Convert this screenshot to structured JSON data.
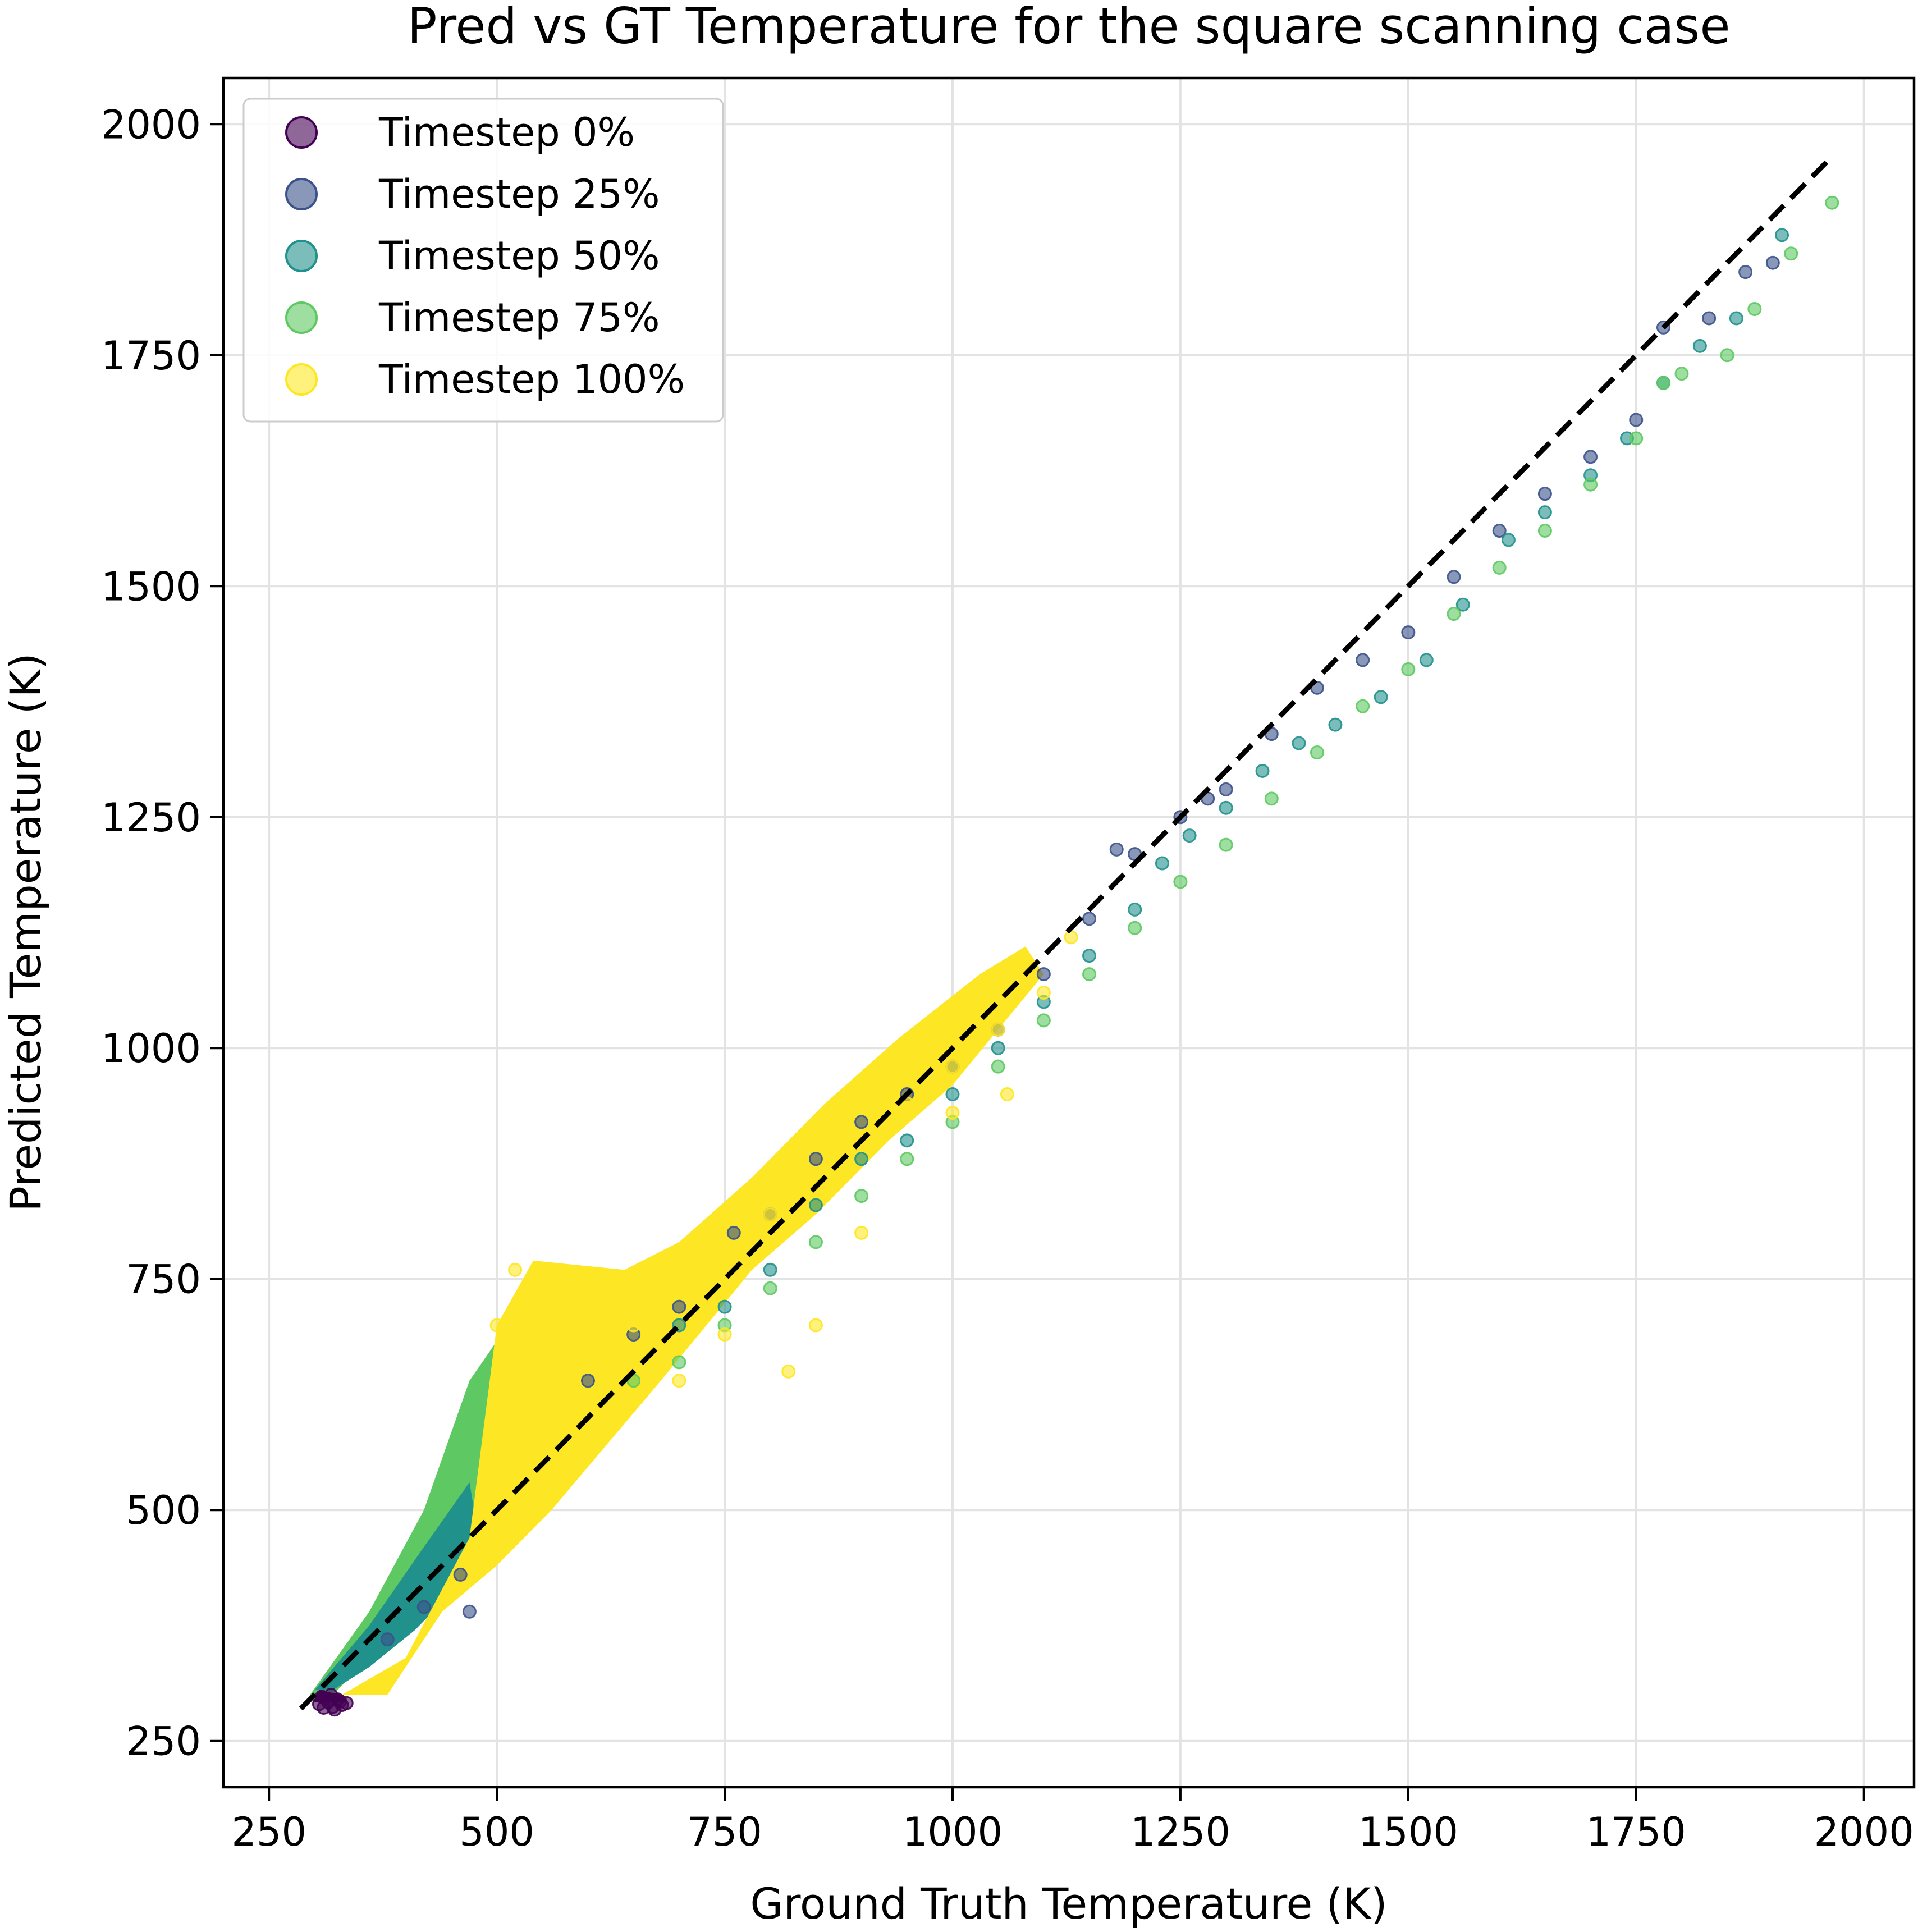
{
  "chart_data": {
    "type": "scatter",
    "title": "Pred vs GT Temperature for the square scanning case",
    "xlabel": "Ground Truth Temperature (K)",
    "ylabel": "Predicted Temperature (K)",
    "xlim": [
      200,
      2055
    ],
    "ylim": [
      200,
      2050
    ],
    "xticks": [
      250,
      500,
      750,
      1000,
      1250,
      1500,
      1750,
      2000
    ],
    "yticks": [
      250,
      500,
      750,
      1000,
      1250,
      1500,
      1750,
      2000
    ],
    "grid": true,
    "legend_position": "upper-left",
    "reference_line": {
      "style": "dashed",
      "color": "#000000",
      "x": [
        285,
        1965
      ],
      "y": [
        285,
        1965
      ]
    },
    "series": [
      {
        "name": "Timestep 0%",
        "color": "#440154",
        "points": [
          [
            305,
            290
          ],
          [
            310,
            286
          ],
          [
            315,
            292
          ],
          [
            320,
            287
          ],
          [
            325,
            295
          ],
          [
            318,
            300
          ],
          [
            330,
            289
          ],
          [
            312,
            296
          ],
          [
            322,
            284
          ],
          [
            308,
            298
          ],
          [
            328,
            293
          ],
          [
            335,
            291
          ]
        ]
      },
      {
        "name": "Timestep 25%",
        "color": "#3b528b",
        "points": [
          [
            380,
            360
          ],
          [
            420,
            395
          ],
          [
            460,
            430
          ],
          [
            470,
            390
          ],
          [
            600,
            640
          ],
          [
            650,
            690
          ],
          [
            700,
            720
          ],
          [
            760,
            800
          ],
          [
            800,
            820
          ],
          [
            850,
            880
          ],
          [
            900,
            920
          ],
          [
            950,
            950
          ],
          [
            1000,
            980
          ],
          [
            1050,
            1020
          ],
          [
            1100,
            1080
          ],
          [
            1150,
            1140
          ],
          [
            1180,
            1215
          ],
          [
            1200,
            1210
          ],
          [
            1250,
            1250
          ],
          [
            1280,
            1270
          ],
          [
            1300,
            1280
          ],
          [
            1350,
            1340
          ],
          [
            1400,
            1390
          ],
          [
            1450,
            1420
          ],
          [
            1500,
            1450
          ],
          [
            1550,
            1510
          ],
          [
            1600,
            1560
          ],
          [
            1650,
            1600
          ],
          [
            1700,
            1640
          ],
          [
            1750,
            1680
          ],
          [
            1780,
            1780
          ],
          [
            1830,
            1790
          ],
          [
            1870,
            1840
          ],
          [
            1900,
            1850
          ]
        ]
      },
      {
        "name": "Timestep 50%",
        "color": "#21918c",
        "points": [
          [
            700,
            700
          ],
          [
            750,
            720
          ],
          [
            800,
            760
          ],
          [
            850,
            830
          ],
          [
            900,
            880
          ],
          [
            950,
            900
          ],
          [
            1000,
            950
          ],
          [
            1050,
            1000
          ],
          [
            1100,
            1050
          ],
          [
            1150,
            1100
          ],
          [
            1200,
            1150
          ],
          [
            1230,
            1200
          ],
          [
            1260,
            1230
          ],
          [
            1300,
            1260
          ],
          [
            1340,
            1300
          ],
          [
            1380,
            1330
          ],
          [
            1420,
            1350
          ],
          [
            1470,
            1380
          ],
          [
            1520,
            1420
          ],
          [
            1560,
            1480
          ],
          [
            1610,
            1550
          ],
          [
            1650,
            1580
          ],
          [
            1700,
            1620
          ],
          [
            1740,
            1660
          ],
          [
            1780,
            1720
          ],
          [
            1820,
            1760
          ],
          [
            1860,
            1790
          ],
          [
            1910,
            1880
          ]
        ]
      },
      {
        "name": "Timestep 75%",
        "color": "#5ec962",
        "points": [
          [
            650,
            640
          ],
          [
            700,
            660
          ],
          [
            750,
            700
          ],
          [
            800,
            740
          ],
          [
            850,
            790
          ],
          [
            900,
            840
          ],
          [
            950,
            880
          ],
          [
            1000,
            920
          ],
          [
            1050,
            980
          ],
          [
            1100,
            1030
          ],
          [
            1150,
            1080
          ],
          [
            1200,
            1130
          ],
          [
            1250,
            1180
          ],
          [
            1300,
            1220
          ],
          [
            1350,
            1270
          ],
          [
            1400,
            1320
          ],
          [
            1450,
            1370
          ],
          [
            1500,
            1410
          ],
          [
            1550,
            1470
          ],
          [
            1600,
            1520
          ],
          [
            1650,
            1560
          ],
          [
            1700,
            1610
          ],
          [
            1750,
            1660
          ],
          [
            1780,
            1720
          ],
          [
            1800,
            1730
          ],
          [
            1850,
            1750
          ],
          [
            1880,
            1800
          ],
          [
            1920,
            1860
          ],
          [
            1965,
            1915
          ]
        ]
      },
      {
        "name": "Timestep 100%",
        "color": "#fde725",
        "points": [
          [
            500,
            700
          ],
          [
            520,
            760
          ],
          [
            560,
            720
          ],
          [
            600,
            690
          ],
          [
            650,
            700
          ],
          [
            700,
            740
          ],
          [
            750,
            780
          ],
          [
            800,
            820
          ],
          [
            850,
            860
          ],
          [
            900,
            900
          ],
          [
            950,
            940
          ],
          [
            1000,
            980
          ],
          [
            1050,
            1020
          ],
          [
            1100,
            1060
          ],
          [
            1130,
            1120
          ],
          [
            700,
            640
          ],
          [
            750,
            690
          ],
          [
            820,
            650
          ],
          [
            850,
            700
          ],
          [
            900,
            800
          ],
          [
            1000,
            930
          ],
          [
            1060,
            950
          ]
        ]
      }
    ]
  }
}
